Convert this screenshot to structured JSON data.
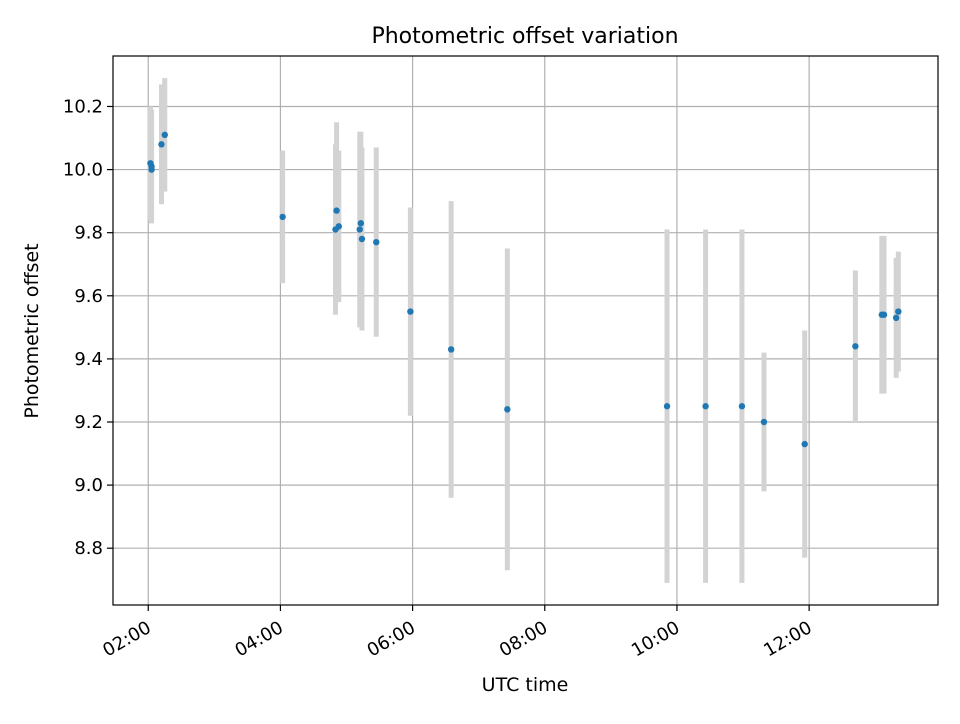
{
  "chart_data": {
    "type": "scatter",
    "title": "Photometric offset variation",
    "xlabel": "UTC time",
    "ylabel": "Photometric offset",
    "x_tick_labels": [
      "02:00",
      "04:00",
      "06:00",
      "08:00",
      "10:00",
      "12:00"
    ],
    "x_tick_times": [
      "02:00",
      "04:00",
      "06:00",
      "08:00",
      "10:00",
      "12:00"
    ],
    "y_tick_labels": [
      "8.8",
      "9.0",
      "9.2",
      "9.4",
      "9.6",
      "9.8",
      "10.0",
      "10.2"
    ],
    "y_tick_values": [
      8.8,
      9.0,
      9.2,
      9.4,
      9.6,
      9.8,
      10.0,
      10.2
    ],
    "xlim": [
      "01:28",
      "13:57"
    ],
    "ylim": [
      8.62,
      10.36
    ],
    "grid": true,
    "marker_color": "#1f77b4",
    "errorbar_color": "#d3d3d3",
    "points": [
      {
        "x": "02:02",
        "y": 10.02,
        "err": 0.18
      },
      {
        "x": "02:03",
        "y": 10.01,
        "err": 0.18
      },
      {
        "x": "02:03",
        "y": 10.0,
        "err": 0.17
      },
      {
        "x": "02:12",
        "y": 10.08,
        "err": 0.19
      },
      {
        "x": "02:15",
        "y": 10.11,
        "err": 0.18
      },
      {
        "x": "04:02",
        "y": 9.85,
        "err": 0.21
      },
      {
        "x": "04:50",
        "y": 9.81,
        "err": 0.27
      },
      {
        "x": "04:51",
        "y": 9.87,
        "err": 0.28
      },
      {
        "x": "04:53",
        "y": 9.82,
        "err": 0.24
      },
      {
        "x": "05:12",
        "y": 9.81,
        "err": 0.31
      },
      {
        "x": "05:13",
        "y": 9.83,
        "err": 0.29
      },
      {
        "x": "05:14",
        "y": 9.78,
        "err": 0.29
      },
      {
        "x": "05:27",
        "y": 9.77,
        "err": 0.3
      },
      {
        "x": "05:58",
        "y": 9.55,
        "err": 0.33
      },
      {
        "x": "06:35",
        "y": 9.43,
        "err": 0.47
      },
      {
        "x": "07:26",
        "y": 9.24,
        "err": 0.51
      },
      {
        "x": "09:51",
        "y": 9.25,
        "err": 0.56
      },
      {
        "x": "10:26",
        "y": 9.25,
        "err": 0.56
      },
      {
        "x": "10:59",
        "y": 9.25,
        "err": 0.56
      },
      {
        "x": "11:19",
        "y": 9.2,
        "err": 0.22
      },
      {
        "x": "11:56",
        "y": 9.13,
        "err": 0.36
      },
      {
        "x": "12:42",
        "y": 9.44,
        "err": 0.24
      },
      {
        "x": "13:06",
        "y": 9.54,
        "err": 0.25
      },
      {
        "x": "13:08",
        "y": 9.54,
        "err": 0.25
      },
      {
        "x": "13:19",
        "y": 9.53,
        "err": 0.19
      },
      {
        "x": "13:21",
        "y": 9.55,
        "err": 0.19
      }
    ]
  }
}
